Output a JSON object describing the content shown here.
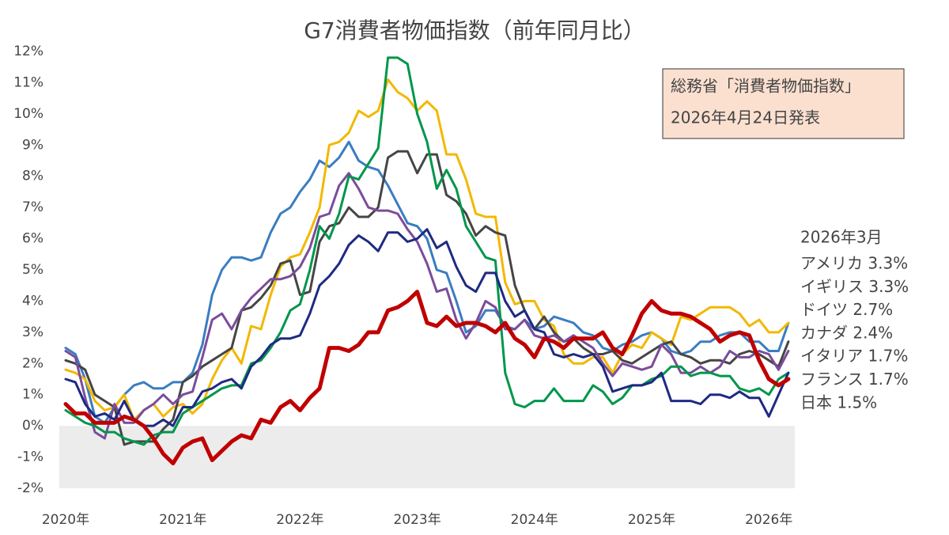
{
  "chart_data": {
    "type": "line",
    "title": "G7消費者物価指数（前年同月比）",
    "annotation": [
      "総務省「消費者物価指数」",
      "2026年4月24日発表"
    ],
    "legend_title": "2026年3月",
    "legend": "right",
    "grid": false,
    "negative_shade": "#ececec",
    "categories": [
      "2020年",
      null,
      null,
      null,
      null,
      null,
      null,
      null,
      null,
      null,
      null,
      null,
      "2021年",
      null,
      null,
      null,
      null,
      null,
      null,
      null,
      null,
      null,
      null,
      null,
      "2022年",
      null,
      null,
      null,
      null,
      null,
      null,
      null,
      null,
      null,
      null,
      null,
      "2023年",
      null,
      null,
      null,
      null,
      null,
      null,
      null,
      null,
      null,
      null,
      null,
      "2024年",
      null,
      null,
      null,
      null,
      null,
      null,
      null,
      null,
      null,
      null,
      null,
      "2025年",
      null,
      null,
      null,
      null,
      null,
      null,
      null,
      null,
      null,
      null,
      null,
      "2026年",
      null,
      null
    ],
    "ylim": [
      -2,
      12
    ],
    "yticks": [
      {
        "value": 12,
        "label": "12%"
      },
      {
        "value": 11,
        "label": "11%"
      },
      {
        "value": 10,
        "label": "10%"
      },
      {
        "value": 9,
        "label": "9%"
      },
      {
        "value": 8,
        "label": "8%"
      },
      {
        "value": 7,
        "label": "7%"
      },
      {
        "value": 6,
        "label": "6%"
      },
      {
        "value": 5,
        "label": "5%"
      },
      {
        "value": 4,
        "label": "4%"
      },
      {
        "value": 3,
        "label": "3%"
      },
      {
        "value": 2,
        "label": "2%"
      },
      {
        "value": 1,
        "label": "1%"
      },
      {
        "value": 0,
        "label": "0%"
      },
      {
        "value": -1,
        "label": "-1%"
      },
      {
        "value": -2,
        "label": "-2%"
      }
    ],
    "series": [
      {
        "name": "アメリカ 3.3%",
        "color": "#3a7dc1",
        "width": 3,
        "values": [
          2.5,
          2.3,
          1.5,
          0.3,
          0.1,
          0.6,
          1.0,
          1.3,
          1.4,
          1.2,
          1.2,
          1.4,
          1.4,
          1.7,
          2.6,
          4.2,
          5.0,
          5.4,
          5.4,
          5.3,
          5.4,
          6.2,
          6.8,
          7.0,
          7.5,
          7.9,
          8.5,
          8.3,
          8.6,
          9.1,
          8.5,
          8.3,
          8.2,
          7.7,
          7.1,
          6.5,
          6.4,
          6.0,
          5.0,
          4.9,
          4.0,
          3.0,
          3.2,
          3.7,
          3.7,
          3.2,
          3.1,
          3.4,
          3.1,
          3.2,
          3.5,
          3.4,
          3.3,
          3.0,
          2.9,
          2.5,
          2.4,
          2.6,
          2.7,
          2.9,
          3.0,
          2.8,
          2.4,
          2.3,
          2.4,
          2.7,
          2.7,
          2.9,
          3.0,
          3.0,
          2.7,
          2.7,
          2.4,
          2.4,
          3.3
        ]
      },
      {
        "name": "イギリス 3.3%",
        "color": "#f2b800",
        "width": 3,
        "values": [
          1.8,
          1.7,
          1.5,
          0.8,
          0.5,
          0.6,
          1.0,
          0.2,
          0.5,
          0.7,
          0.3,
          0.6,
          0.7,
          0.4,
          0.7,
          1.5,
          2.1,
          2.5,
          2.0,
          3.2,
          3.1,
          4.2,
          5.1,
          5.4,
          5.5,
          6.2,
          7.0,
          9.0,
          9.1,
          9.4,
          10.1,
          9.9,
          10.1,
          11.1,
          10.7,
          10.5,
          10.1,
          10.4,
          10.1,
          8.7,
          8.7,
          7.9,
          6.8,
          6.7,
          6.7,
          4.6,
          3.9,
          4.0,
          4.0,
          3.4,
          3.2,
          2.3,
          2.0,
          2.0,
          2.2,
          2.2,
          1.7,
          2.3,
          2.6,
          2.5,
          3.0,
          2.8,
          2.6,
          3.5,
          3.4,
          3.6,
          3.8,
          3.8,
          3.8,
          3.6,
          3.2,
          3.4,
          3.0,
          3.0,
          3.3
        ]
      },
      {
        "name": "ドイツ 2.7%",
        "color": "#454545",
        "width": 3,
        "values": [
          2.1,
          2.0,
          1.8,
          1.0,
          0.8,
          0.6,
          -0.6,
          -0.5,
          -0.5,
          -0.5,
          -0.1,
          0.2,
          1.4,
          1.6,
          1.9,
          2.1,
          2.3,
          2.5,
          3.7,
          3.8,
          4.1,
          4.5,
          5.2,
          5.3,
          4.2,
          4.3,
          5.9,
          6.4,
          6.5,
          7.0,
          6.7,
          6.7,
          7.0,
          8.6,
          8.8,
          8.8,
          8.1,
          8.7,
          8.7,
          7.4,
          7.2,
          6.8,
          6.1,
          6.4,
          6.2,
          6.1,
          4.5,
          3.7,
          3.1,
          3.5,
          3.0,
          2.7,
          2.8,
          2.5,
          2.3,
          2.3,
          2.4,
          2.1,
          2.0,
          2.2,
          2.4,
          2.6,
          2.7,
          2.3,
          2.2,
          2.0,
          2.1,
          2.1,
          2.0,
          2.3,
          2.4,
          2.3,
          2.1,
          1.9,
          2.7
        ]
      },
      {
        "name": "カナダ 2.4%",
        "color": "#7b4c9b",
        "width": 3,
        "values": [
          2.4,
          2.2,
          0.9,
          -0.2,
          -0.4,
          0.7,
          0.1,
          0.1,
          0.5,
          0.7,
          1.0,
          0.7,
          1.0,
          1.1,
          2.2,
          3.4,
          3.6,
          3.1,
          3.7,
          4.1,
          4.4,
          4.7,
          4.7,
          4.8,
          5.1,
          5.7,
          6.7,
          6.8,
          7.7,
          8.1,
          7.6,
          7.0,
          6.9,
          6.9,
          6.8,
          6.3,
          5.9,
          5.2,
          4.3,
          4.4,
          3.4,
          2.8,
          3.3,
          4.0,
          3.8,
          3.1,
          3.1,
          3.4,
          2.9,
          2.8,
          2.9,
          2.7,
          2.9,
          2.7,
          2.5,
          2.0,
          1.6,
          2.0,
          1.9,
          1.8,
          1.9,
          2.6,
          2.3,
          1.7,
          1.7,
          1.9,
          1.7,
          1.9,
          2.4,
          2.2,
          2.2,
          2.4,
          2.3,
          1.8,
          2.4
        ]
      },
      {
        "name": "イタリア 1.7%",
        "color": "#00964b",
        "width": 3,
        "values": [
          0.5,
          0.3,
          0.1,
          0.0,
          -0.2,
          -0.2,
          -0.4,
          -0.5,
          -0.6,
          -0.3,
          -0.2,
          -0.2,
          0.4,
          0.6,
          0.8,
          1.0,
          1.2,
          1.3,
          1.3,
          2.0,
          2.1,
          2.5,
          3.0,
          3.7,
          3.9,
          5.0,
          6.4,
          6.0,
          6.8,
          8.0,
          7.9,
          8.4,
          8.9,
          11.8,
          11.8,
          11.6,
          10.0,
          9.1,
          7.6,
          8.2,
          7.6,
          6.4,
          5.9,
          5.4,
          5.3,
          1.7,
          0.7,
          0.6,
          0.8,
          0.8,
          1.2,
          0.8,
          0.8,
          0.8,
          1.3,
          1.1,
          0.7,
          0.9,
          1.3,
          1.3,
          1.5,
          1.6,
          1.9,
          1.9,
          1.6,
          1.7,
          1.7,
          1.6,
          1.6,
          1.2,
          1.1,
          1.2,
          1.0,
          1.5,
          1.7
        ]
      },
      {
        "name": "フランス 1.7%",
        "color": "#1e2a82",
        "width": 3,
        "values": [
          1.5,
          1.4,
          0.7,
          0.3,
          0.4,
          0.2,
          0.8,
          0.2,
          0.0,
          0.0,
          0.2,
          0.0,
          0.6,
          0.6,
          1.1,
          1.2,
          1.4,
          1.5,
          1.2,
          1.9,
          2.2,
          2.6,
          2.8,
          2.8,
          2.9,
          3.6,
          4.5,
          4.8,
          5.2,
          5.8,
          6.1,
          5.9,
          5.6,
          6.2,
          6.2,
          5.9,
          6.0,
          6.3,
          5.7,
          5.9,
          5.1,
          4.5,
          4.3,
          4.9,
          4.9,
          4.0,
          3.5,
          3.7,
          3.1,
          3.0,
          2.3,
          2.2,
          2.3,
          2.2,
          2.3,
          1.9,
          1.1,
          1.2,
          1.3,
          1.3,
          1.4,
          1.7,
          0.8,
          0.8,
          0.8,
          0.7,
          1.0,
          1.0,
          0.9,
          1.1,
          0.9,
          0.9,
          0.3,
          1.0,
          1.7
        ]
      },
      {
        "name": "日本 1.5%",
        "color": "#c00000",
        "width": 5,
        "values": [
          0.7,
          0.4,
          0.4,
          0.1,
          0.1,
          0.1,
          0.3,
          0.2,
          0.0,
          -0.4,
          -0.9,
          -1.2,
          -0.7,
          -0.5,
          -0.4,
          -1.1,
          -0.8,
          -0.5,
          -0.3,
          -0.4,
          0.2,
          0.1,
          0.6,
          0.8,
          0.5,
          0.9,
          1.2,
          2.5,
          2.5,
          2.4,
          2.6,
          3.0,
          3.0,
          3.7,
          3.8,
          4.0,
          4.3,
          3.3,
          3.2,
          3.5,
          3.2,
          3.3,
          3.3,
          3.2,
          3.0,
          3.3,
          2.8,
          2.6,
          2.2,
          2.8,
          2.7,
          2.5,
          2.8,
          2.8,
          2.8,
          3.0,
          2.5,
          2.3,
          2.9,
          3.6,
          4.0,
          3.7,
          3.6,
          3.6,
          3.5,
          3.3,
          3.1,
          2.7,
          2.9,
          3.0,
          2.9,
          2.1,
          1.5,
          1.3,
          1.5
        ]
      }
    ]
  }
}
